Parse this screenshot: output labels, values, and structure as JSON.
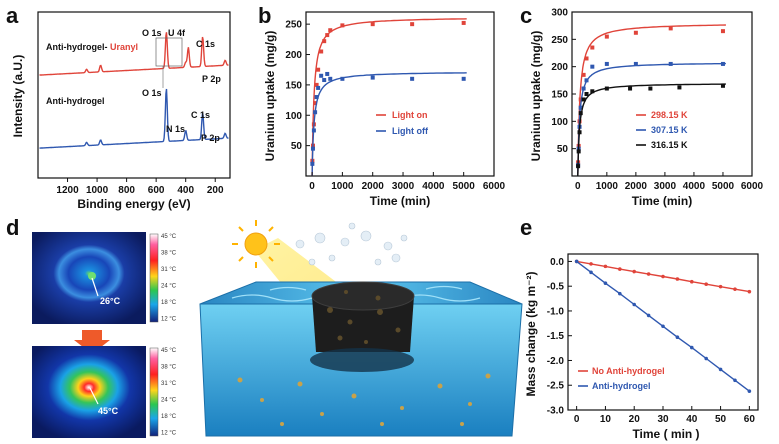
{
  "panels": {
    "a": {
      "letter": "a"
    },
    "b": {
      "letter": "b"
    },
    "c": {
      "letter": "c"
    },
    "d": {
      "letter": "d"
    },
    "e": {
      "letter": "e"
    }
  },
  "colors": {
    "red": "#e0443a",
    "blue": "#2f58b0",
    "black": "#111111",
    "water": "#3aa9d8"
  },
  "chart_data": [
    {
      "id": "a",
      "type": "line",
      "xlabel": "Binding energy (eV)",
      "ylabel": "Intensity (a.U.)",
      "xlim": [
        1400,
        100
      ],
      "x_ticks": [
        1200,
        1000,
        800,
        600,
        400,
        200
      ],
      "series": [
        {
          "name": "Anti-hydrogel-",
          "suffix": "Uranyl",
          "color": "#e0443a",
          "base": 0.62,
          "peaks": [
            {
              "x": 1071,
              "h": 0.02
            },
            {
              "x": 976,
              "h": 0.04
            },
            {
              "x": 531,
              "h": 0.22
            },
            {
              "x": 400,
              "h": 0.03
            },
            {
              "x": 382,
              "h": 0.12
            },
            {
              "x": 285,
              "h": 0.18
            },
            {
              "x": 133,
              "h": 0.03
            }
          ]
        },
        {
          "name": "Anti-hydrogel",
          "color": "#2f58b0",
          "base": 0.18,
          "peaks": [
            {
              "x": 1071,
              "h": 0.02
            },
            {
              "x": 976,
              "h": 0.03
            },
            {
              "x": 531,
              "h": 0.32
            },
            {
              "x": 400,
              "h": 0.06
            },
            {
              "x": 285,
              "h": 0.16
            },
            {
              "x": 133,
              "h": 0.03
            }
          ]
        }
      ],
      "annotations": {
        "red": [
          "O 1s",
          "U 4f",
          "C 1s",
          "P 2p"
        ],
        "blue": [
          "O 1s",
          "N 1s",
          "C 1s",
          "P 2p"
        ]
      }
    },
    {
      "id": "b",
      "type": "scatter",
      "xlabel": "Time (min)",
      "ylabel": "Uranium uptake (mg/g)",
      "xlim": [
        -200,
        6000
      ],
      "ylim": [
        0,
        270
      ],
      "x_ticks": [
        0,
        1000,
        2000,
        3000,
        4000,
        5000,
        6000
      ],
      "y_ticks": [
        50,
        100,
        150,
        200,
        250
      ],
      "series": [
        {
          "name": "Light on",
          "color": "#e0443a",
          "qe": 262,
          "k": 0.006,
          "x": [
            10,
            30,
            60,
            100,
            150,
            200,
            300,
            400,
            500,
            600,
            1000,
            2000,
            3300,
            5000
          ],
          "y": [
            25,
            50,
            85,
            120,
            150,
            175,
            205,
            222,
            232,
            240,
            248,
            250,
            250,
            252
          ]
        },
        {
          "name": "Light off",
          "color": "#2f58b0",
          "qe": 172,
          "k": 0.009,
          "x": [
            10,
            30,
            60,
            100,
            150,
            200,
            300,
            400,
            500,
            600,
            1000,
            2000,
            3300,
            5000
          ],
          "y": [
            20,
            45,
            75,
            105,
            130,
            145,
            165,
            158,
            168,
            160,
            160,
            162,
            160,
            160
          ]
        }
      ]
    },
    {
      "id": "c",
      "type": "scatter",
      "xlabel": "Time (min)",
      "ylabel": "Uranium uptake (mg/g)",
      "xlim": [
        -200,
        6000
      ],
      "ylim": [
        0,
        300
      ],
      "x_ticks": [
        0,
        1000,
        2000,
        3000,
        4000,
        5000,
        6000
      ],
      "y_ticks": [
        50,
        100,
        150,
        200,
        250,
        300
      ],
      "series": [
        {
          "name": "298.15 K",
          "color": "#e0443a",
          "qe": 280,
          "k": 0.005,
          "x": [
            10,
            30,
            60,
            100,
            200,
            300,
            500,
            1000,
            2000,
            3200,
            5000
          ],
          "y": [
            25,
            55,
            100,
            140,
            185,
            215,
            235,
            255,
            262,
            270,
            265
          ]
        },
        {
          "name": "307.15 K",
          "color": "#2f58b0",
          "qe": 208,
          "k": 0.008,
          "x": [
            10,
            30,
            60,
            100,
            200,
            300,
            500,
            1000,
            2000,
            3200,
            5000
          ],
          "y": [
            20,
            50,
            90,
            125,
            160,
            175,
            200,
            205,
            205,
            205,
            205
          ]
        },
        {
          "name": "316.15 K",
          "color": "#111111",
          "qe": 170,
          "k": 0.01,
          "x": [
            10,
            30,
            60,
            100,
            200,
            300,
            500,
            1000,
            1800,
            2500,
            3500,
            5000
          ],
          "y": [
            18,
            45,
            80,
            115,
            140,
            150,
            155,
            160,
            160,
            160,
            162,
            165
          ]
        }
      ]
    },
    {
      "id": "e",
      "type": "line",
      "xlabel": "Time ( min )",
      "ylabel": "Mass change (kg m⁻²)",
      "xlim": [
        -3,
        63
      ],
      "ylim": [
        -3.0,
        0.15
      ],
      "x_ticks": [
        0,
        10,
        20,
        30,
        40,
        50,
        60
      ],
      "y_ticks": [
        0.0,
        -0.5,
        -1.0,
        -1.5,
        -2.0,
        -2.5,
        -3.0
      ],
      "series": [
        {
          "name": "No Anti-hydrogel",
          "color": "#e0443a",
          "x": [
            0,
            5,
            10,
            15,
            20,
            25,
            30,
            35,
            40,
            45,
            50,
            55,
            60
          ],
          "y": [
            0,
            -0.05,
            -0.1,
            -0.155,
            -0.205,
            -0.255,
            -0.305,
            -0.355,
            -0.41,
            -0.46,
            -0.51,
            -0.56,
            -0.61
          ]
        },
        {
          "name": "Anti-hydrogel",
          "color": "#2f58b0",
          "x": [
            0,
            5,
            10,
            15,
            20,
            25,
            30,
            35,
            40,
            45,
            50,
            55,
            60
          ],
          "y": [
            0,
            -0.22,
            -0.44,
            -0.65,
            -0.87,
            -1.09,
            -1.31,
            -1.53,
            -1.74,
            -1.96,
            -2.18,
            -2.4,
            -2.62
          ]
        }
      ]
    }
  ],
  "thermal": {
    "colorbar_ticks": [
      "45 °C",
      "38 °C",
      "31 °C",
      "24 °C",
      "18 °C",
      "12 °C"
    ],
    "top_label": "26°C",
    "bottom_label": "45°C"
  }
}
